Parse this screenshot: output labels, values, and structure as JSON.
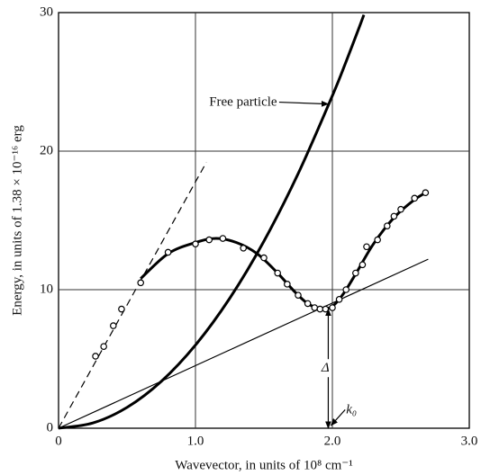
{
  "chart_data": {
    "type": "line",
    "xlabel": "Wavevector, in units of 10⁸ cm⁻¹",
    "ylabel": "Energy, in units of 1.38 × 10⁻¹⁶ erg",
    "xlim": [
      0,
      3
    ],
    "ylim": [
      0,
      30
    ],
    "xticks": [
      0,
      {
        "value": 1,
        "label": "1.0"
      },
      {
        "value": 2,
        "label": "2.0"
      },
      {
        "value": 3,
        "label": "3.0"
      }
    ],
    "yticks": [
      0,
      10,
      20,
      30
    ],
    "grid": true,
    "series": [
      {
        "style": "thick",
        "color": "#000000",
        "x": [
          0,
          0.25,
          0.5,
          0.75,
          1,
          1.25,
          1.5,
          1.75,
          2,
          2.1,
          2.2,
          2.23
        ],
        "values": [
          0,
          0.375,
          1.5,
          3.375,
          6,
          9.375,
          13.5,
          18.375,
          24,
          26.46,
          29.04,
          29.84
        ]
      },
      {
        "style": "dashed",
        "color": "#000000",
        "x": [
          0,
          1.08
        ],
        "values": [
          0,
          19.2
        ]
      },
      {
        "style": "thin",
        "color": "#000000",
        "x": [
          0,
          2.7
        ],
        "values": [
          0,
          12.2
        ]
      },
      {
        "style": "thick",
        "color": "#000000",
        "x": [
          0.6,
          0.8,
          1.0,
          1.15,
          1.3,
          1.45,
          1.6,
          1.72,
          1.82,
          1.92,
          2.0,
          2.08,
          2.18,
          2.3,
          2.45,
          2.6,
          2.7
        ],
        "values": [
          10.8,
          12.6,
          13.4,
          13.7,
          13.4,
          12.6,
          11.2,
          9.9,
          9.0,
          8.6,
          8.8,
          9.7,
          11.3,
          13.3,
          15.2,
          16.5,
          17.1
        ]
      },
      {
        "style": "markers",
        "color": "#000000",
        "x": [
          0.27,
          0.33,
          0.4,
          0.46,
          0.6,
          0.8,
          1.0,
          1.1,
          1.2,
          1.35,
          1.5,
          1.6,
          1.67,
          1.75,
          1.82,
          1.87,
          1.91,
          1.95,
          2.0,
          2.05,
          2.1,
          2.17,
          2.22,
          2.25,
          2.33,
          2.4,
          2.45,
          2.5,
          2.6,
          2.68
        ],
        "values": [
          5.2,
          5.9,
          7.4,
          8.6,
          10.5,
          12.7,
          13.3,
          13.6,
          13.7,
          13.0,
          12.3,
          11.2,
          10.4,
          9.6,
          9.0,
          8.7,
          8.6,
          8.6,
          8.7,
          9.3,
          10.0,
          11.2,
          11.8,
          13.1,
          13.6,
          14.6,
          15.3,
          15.8,
          16.6,
          17.0
        ]
      }
    ],
    "annotations": [
      {
        "text": "Free particle",
        "x": 1.1,
        "y": 23.5,
        "arrow": [
          1.97,
          23.4
        ]
      },
      {
        "text": "Δ",
        "x": 1.92,
        "y": 4.3,
        "arrow": [
          1.97,
          8.6
        ]
      },
      {
        "text": "k₀",
        "x": 2.1,
        "y": 1.3,
        "arrow": [
          1.99,
          0.2
        ]
      }
    ]
  }
}
